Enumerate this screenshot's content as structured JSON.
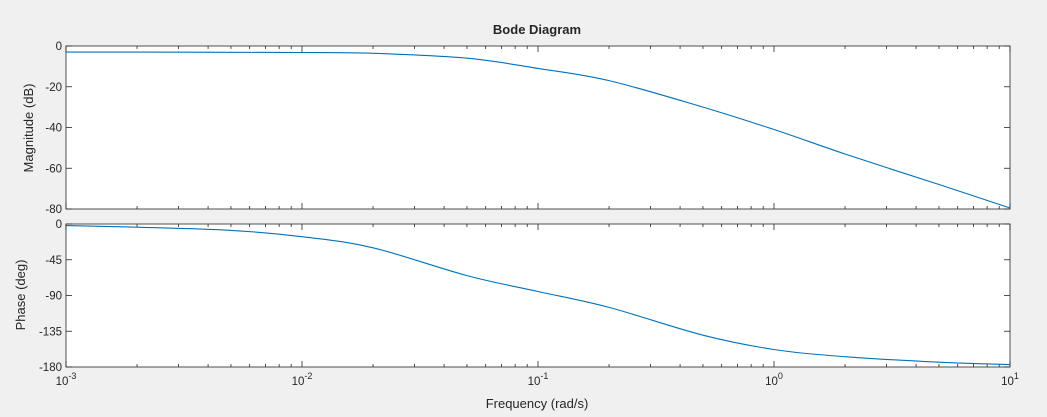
{
  "chart_data": [
    {
      "type": "line",
      "title": "Bode Diagram",
      "xlabel": "",
      "ylabel": "Magnitude (dB)",
      "xscale": "log",
      "xlim": [
        0.001,
        10
      ],
      "ylim": [
        -80,
        0
      ],
      "yticks": [
        "0",
        "-20",
        "-40",
        "-60",
        "-80"
      ],
      "grid": false,
      "color": "#0072bd",
      "x": [
        0.001,
        0.002,
        0.005,
        0.01,
        0.02,
        0.05,
        0.1,
        0.2,
        0.5,
        1,
        2,
        5,
        10
      ],
      "y": [
        -3,
        -3,
        -3.1,
        -3.2,
        -3.6,
        -6,
        -11,
        -17,
        -30,
        -41,
        -53,
        -68,
        -79.5
      ]
    },
    {
      "type": "line",
      "title": "",
      "xlabel": "Frequency  (rad/s)",
      "ylabel": "Phase (deg)",
      "xscale": "log",
      "xlim": [
        0.001,
        10
      ],
      "ylim": [
        -180,
        0
      ],
      "yticks": [
        "0",
        "-45",
        "-90",
        "-135",
        "-180"
      ],
      "xticks": [
        {
          "base": "10",
          "exp": "-3"
        },
        {
          "base": "10",
          "exp": "-2"
        },
        {
          "base": "10",
          "exp": "-1"
        },
        {
          "base": "10",
          "exp": "0"
        },
        {
          "base": "10",
          "exp": "1"
        }
      ],
      "grid": false,
      "color": "#0072bd",
      "x": [
        0.001,
        0.002,
        0.005,
        0.01,
        0.02,
        0.05,
        0.1,
        0.2,
        0.5,
        1,
        2,
        5,
        10
      ],
      "y": [
        -2,
        -4,
        -8,
        -16,
        -30,
        -65,
        -85,
        -105,
        -140,
        -158,
        -167,
        -174,
        -177
      ]
    }
  ]
}
